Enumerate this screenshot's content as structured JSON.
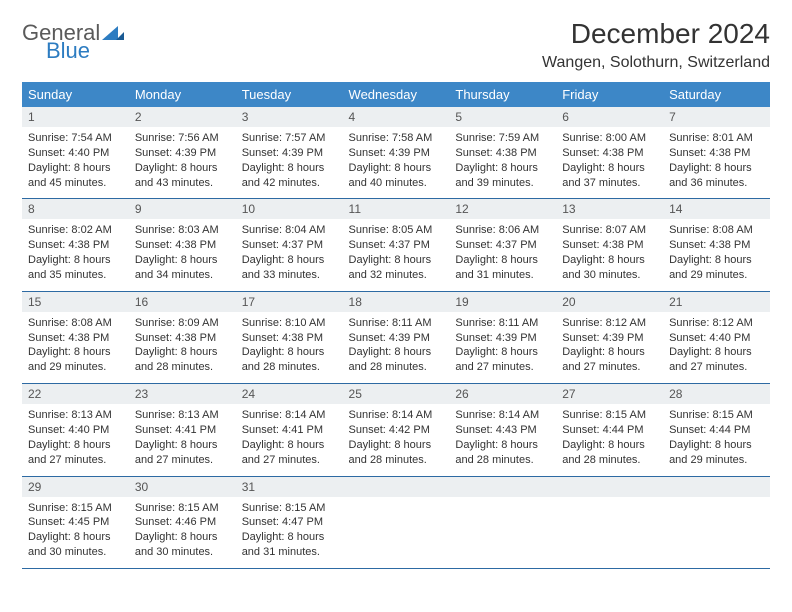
{
  "brand": {
    "part1": "General",
    "part2": "Blue"
  },
  "title": "December 2024",
  "location": "Wangen, Solothurn, Switzerland",
  "colors": {
    "header_bg": "#3d87c7",
    "header_text": "#ffffff",
    "daynum_bg": "#eceff1",
    "border": "#2d6aa3",
    "brand_blue": "#2d7cc1",
    "brand_gray": "#5a5a5a"
  },
  "weekdays": [
    "Sunday",
    "Monday",
    "Tuesday",
    "Wednesday",
    "Thursday",
    "Friday",
    "Saturday"
  ],
  "weeks": [
    [
      {
        "n": "1",
        "sr": "7:54 AM",
        "ss": "4:40 PM",
        "dl": "8 hours and 45 minutes."
      },
      {
        "n": "2",
        "sr": "7:56 AM",
        "ss": "4:39 PM",
        "dl": "8 hours and 43 minutes."
      },
      {
        "n": "3",
        "sr": "7:57 AM",
        "ss": "4:39 PM",
        "dl": "8 hours and 42 minutes."
      },
      {
        "n": "4",
        "sr": "7:58 AM",
        "ss": "4:39 PM",
        "dl": "8 hours and 40 minutes."
      },
      {
        "n": "5",
        "sr": "7:59 AM",
        "ss": "4:38 PM",
        "dl": "8 hours and 39 minutes."
      },
      {
        "n": "6",
        "sr": "8:00 AM",
        "ss": "4:38 PM",
        "dl": "8 hours and 37 minutes."
      },
      {
        "n": "7",
        "sr": "8:01 AM",
        "ss": "4:38 PM",
        "dl": "8 hours and 36 minutes."
      }
    ],
    [
      {
        "n": "8",
        "sr": "8:02 AM",
        "ss": "4:38 PM",
        "dl": "8 hours and 35 minutes."
      },
      {
        "n": "9",
        "sr": "8:03 AM",
        "ss": "4:38 PM",
        "dl": "8 hours and 34 minutes."
      },
      {
        "n": "10",
        "sr": "8:04 AM",
        "ss": "4:37 PM",
        "dl": "8 hours and 33 minutes."
      },
      {
        "n": "11",
        "sr": "8:05 AM",
        "ss": "4:37 PM",
        "dl": "8 hours and 32 minutes."
      },
      {
        "n": "12",
        "sr": "8:06 AM",
        "ss": "4:37 PM",
        "dl": "8 hours and 31 minutes."
      },
      {
        "n": "13",
        "sr": "8:07 AM",
        "ss": "4:38 PM",
        "dl": "8 hours and 30 minutes."
      },
      {
        "n": "14",
        "sr": "8:08 AM",
        "ss": "4:38 PM",
        "dl": "8 hours and 29 minutes."
      }
    ],
    [
      {
        "n": "15",
        "sr": "8:08 AM",
        "ss": "4:38 PM",
        "dl": "8 hours and 29 minutes."
      },
      {
        "n": "16",
        "sr": "8:09 AM",
        "ss": "4:38 PM",
        "dl": "8 hours and 28 minutes."
      },
      {
        "n": "17",
        "sr": "8:10 AM",
        "ss": "4:38 PM",
        "dl": "8 hours and 28 minutes."
      },
      {
        "n": "18",
        "sr": "8:11 AM",
        "ss": "4:39 PM",
        "dl": "8 hours and 28 minutes."
      },
      {
        "n": "19",
        "sr": "8:11 AM",
        "ss": "4:39 PM",
        "dl": "8 hours and 27 minutes."
      },
      {
        "n": "20",
        "sr": "8:12 AM",
        "ss": "4:39 PM",
        "dl": "8 hours and 27 minutes."
      },
      {
        "n": "21",
        "sr": "8:12 AM",
        "ss": "4:40 PM",
        "dl": "8 hours and 27 minutes."
      }
    ],
    [
      {
        "n": "22",
        "sr": "8:13 AM",
        "ss": "4:40 PM",
        "dl": "8 hours and 27 minutes."
      },
      {
        "n": "23",
        "sr": "8:13 AM",
        "ss": "4:41 PM",
        "dl": "8 hours and 27 minutes."
      },
      {
        "n": "24",
        "sr": "8:14 AM",
        "ss": "4:41 PM",
        "dl": "8 hours and 27 minutes."
      },
      {
        "n": "25",
        "sr": "8:14 AM",
        "ss": "4:42 PM",
        "dl": "8 hours and 28 minutes."
      },
      {
        "n": "26",
        "sr": "8:14 AM",
        "ss": "4:43 PM",
        "dl": "8 hours and 28 minutes."
      },
      {
        "n": "27",
        "sr": "8:15 AM",
        "ss": "4:44 PM",
        "dl": "8 hours and 28 minutes."
      },
      {
        "n": "28",
        "sr": "8:15 AM",
        "ss": "4:44 PM",
        "dl": "8 hours and 29 minutes."
      }
    ],
    [
      {
        "n": "29",
        "sr": "8:15 AM",
        "ss": "4:45 PM",
        "dl": "8 hours and 30 minutes."
      },
      {
        "n": "30",
        "sr": "8:15 AM",
        "ss": "4:46 PM",
        "dl": "8 hours and 30 minutes."
      },
      {
        "n": "31",
        "sr": "8:15 AM",
        "ss": "4:47 PM",
        "dl": "8 hours and 31 minutes."
      },
      null,
      null,
      null,
      null
    ]
  ],
  "labels": {
    "sunrise": "Sunrise:",
    "sunset": "Sunset:",
    "daylight": "Daylight:"
  }
}
